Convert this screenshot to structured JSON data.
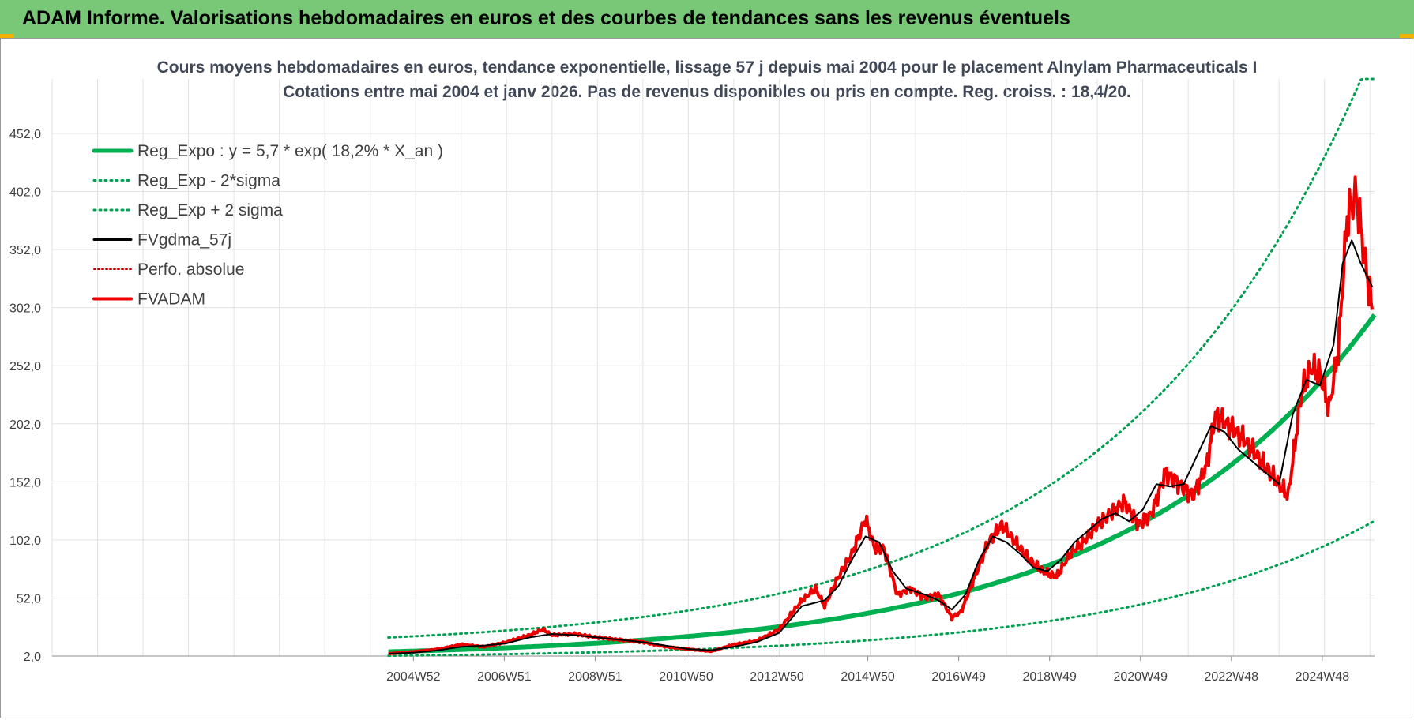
{
  "header": {
    "title": "ADAM Informe. Valorisations hebdomadaires en euros et des courbes de tendances sans les revenus éventuels"
  },
  "colors": {
    "header_bg": "#78c878",
    "trend": "#00b050",
    "band": "#00a050",
    "smoothed": "#000000",
    "perf": "#c00000",
    "price": "#ee0000"
  },
  "chart_data": {
    "type": "line",
    "title_line1": "Cours moyens hebdomadaires en euros, tendance exponentielle, lissage 57 j depuis mai 2004 pour le placement Alnylam Pharmaceuticals I",
    "title_line2": "Cotations entre mai 2004 et janv 2026. Pas de revenus disponibles ou pris en compte. Reg. croiss. : 18,4/20.",
    "xlabel": "",
    "ylabel": "",
    "y_ticks": [
      "2,0",
      "52,0",
      "102,0",
      "152,0",
      "202,0",
      "252,0",
      "302,0",
      "352,0",
      "402,0",
      "452,0"
    ],
    "ylim": [
      2,
      452
    ],
    "x_ticks": [
      "2004W52",
      "2006W51",
      "2008W51",
      "2010W50",
      "2012W50",
      "2014W50",
      "2016W49",
      "2018W49",
      "2020W49",
      "2022W48",
      "2024W48"
    ],
    "x_range_years": [
      1997.0,
      2026.1
    ],
    "data_start_year": 2004.4,
    "grid": true,
    "legend_position": "top-left",
    "legend": [
      {
        "label": "Reg_Expo : y = 5,7 * exp( 18,2% *  X_an )",
        "style": "trend"
      },
      {
        "label": "Reg_Exp - 2*sigma",
        "style": "band"
      },
      {
        "label": "Reg_Exp + 2 sigma",
        "style": "band"
      },
      {
        "label": "FVgdma_57j",
        "style": "smoothed"
      },
      {
        "label": "Perfo. absolue",
        "style": "perf"
      },
      {
        "label": "FVADAM",
        "style": "price"
      }
    ],
    "trend_model": {
      "a": 5.7,
      "rate": 0.182,
      "lower_factor": 0.4,
      "upper_factor": 1.75
    },
    "series": [
      {
        "name": "FVADAM",
        "x": [
          2004.4,
          2005.0,
          2005.5,
          2006.0,
          2006.5,
          2007.0,
          2007.5,
          2007.8,
          2008.0,
          2008.5,
          2009.0,
          2009.5,
          2010.0,
          2010.5,
          2011.0,
          2011.5,
          2012.0,
          2012.5,
          2013.0,
          2013.5,
          2013.8,
          2014.0,
          2014.3,
          2014.6,
          2014.9,
          2015.1,
          2015.3,
          2015.6,
          2015.9,
          2016.2,
          2016.5,
          2016.8,
          2017.0,
          2017.3,
          2017.6,
          2017.9,
          2018.2,
          2018.5,
          2018.8,
          2019.1,
          2019.4,
          2019.7,
          2020.0,
          2020.3,
          2020.6,
          2020.9,
          2021.2,
          2021.5,
          2021.8,
          2022.1,
          2022.4,
          2022.6,
          2022.9,
          2023.2,
          2023.5,
          2023.8,
          2024.0,
          2024.2,
          2024.5,
          2024.7,
          2024.9,
          2025.1,
          2025.3,
          2025.5,
          2025.7,
          2025.9,
          2026.05
        ],
        "values": [
          4,
          6,
          8,
          12,
          10,
          14,
          20,
          25,
          20,
          21,
          18,
          16,
          14,
          10,
          8,
          6,
          12,
          15,
          25,
          50,
          60,
          45,
          70,
          90,
          120,
          95,
          95,
          55,
          60,
          52,
          55,
          35,
          40,
          70,
          100,
          115,
          100,
          85,
          75,
          70,
          90,
          100,
          115,
          125,
          135,
          115,
          125,
          160,
          150,
          140,
          165,
          210,
          200,
          190,
          175,
          160,
          150,
          140,
          230,
          250,
          245,
          215,
          265,
          380,
          400,
          340,
          300
        ]
      },
      {
        "name": "FVgdma_57j",
        "x": [
          2004.4,
          2005.0,
          2005.5,
          2006.0,
          2006.5,
          2007.0,
          2007.5,
          2008.0,
          2008.5,
          2009.0,
          2009.5,
          2010.0,
          2010.5,
          2011.0,
          2011.5,
          2012.0,
          2012.5,
          2013.0,
          2013.5,
          2014.0,
          2014.3,
          2014.6,
          2014.9,
          2015.2,
          2015.5,
          2015.8,
          2016.2,
          2016.5,
          2016.8,
          2017.1,
          2017.4,
          2017.7,
          2018.0,
          2018.3,
          2018.6,
          2018.9,
          2019.2,
          2019.5,
          2019.8,
          2020.1,
          2020.4,
          2020.7,
          2021.0,
          2021.3,
          2021.6,
          2021.9,
          2022.2,
          2022.5,
          2022.8,
          2023.1,
          2023.4,
          2023.7,
          2024.0,
          2024.3,
          2024.6,
          2024.9,
          2025.2,
          2025.4,
          2025.6,
          2025.8,
          2026.05
        ],
        "values": [
          4,
          5,
          7,
          10,
          11,
          13,
          18,
          21,
          20,
          18,
          16,
          14,
          11,
          8,
          7,
          10,
          14,
          22,
          45,
          50,
          62,
          85,
          105,
          100,
          75,
          60,
          55,
          50,
          42,
          55,
          85,
          105,
          100,
          90,
          78,
          75,
          85,
          100,
          110,
          120,
          125,
          118,
          128,
          150,
          148,
          150,
          175,
          200,
          195,
          180,
          170,
          160,
          150,
          210,
          240,
          235,
          270,
          340,
          360,
          340,
          320
        ]
      }
    ]
  }
}
